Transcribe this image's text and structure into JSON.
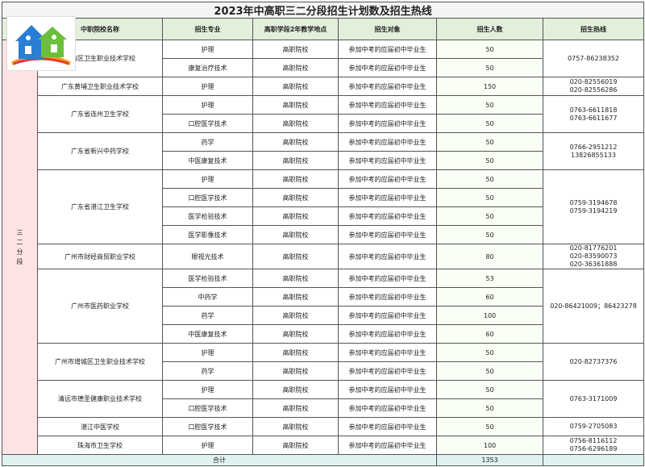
{
  "title": "2023年中高职三二分段招生计划数及招生热线",
  "header": [
    "中职院校名称",
    "招生专业",
    "高职学段2年教学地点",
    "招生对象",
    "招生人数",
    "招生热线"
  ],
  "group": "三二分段",
  "schools": [
    {
      "name": "南海区卫生职业技术学校",
      "hotlines": [
        "0757-86238352"
      ],
      "programs": [
        {
          "major": "护理",
          "place": "高职院校",
          "target": "参加中考的应届初中毕业生",
          "count": 50
        },
        {
          "major": "康复治疗技术",
          "place": "高职院校",
          "target": "参加中考的应届初中毕业生",
          "count": 50
        }
      ]
    },
    {
      "name": "广东黄埔卫生职业技术学校",
      "hotlines": [
        "020-82556019",
        "020-82556286"
      ],
      "programs": [
        {
          "major": "护理",
          "place": "高职院校",
          "target": "参加中考的应届初中毕业生",
          "count": 150
        }
      ]
    },
    {
      "name": "广东省连州卫生学校",
      "hotlines": [
        "0763-6611818",
        "0763-6611677"
      ],
      "programs": [
        {
          "major": "护理",
          "place": "高职院校",
          "target": "参加中考的应届初中毕业生",
          "count": 50
        },
        {
          "major": "口腔医学技术",
          "place": "高职院校",
          "target": "参加中考的应届初中毕业生",
          "count": 50
        }
      ]
    },
    {
      "name": "广东省新兴中药学校",
      "hotlines": [
        "0766-2951212",
        "13826855133"
      ],
      "programs": [
        {
          "major": "药学",
          "place": "高职院校",
          "target": "参加中考的应届初中毕业生",
          "count": 50
        },
        {
          "major": "中医康复技术",
          "place": "高职院校",
          "target": "参加中考的应届初中毕业生",
          "count": 50
        }
      ]
    },
    {
      "name": "广东省湛江卫生学校",
      "hotlines": [
        "0759-3194678",
        "0759-3194219"
      ],
      "programs": [
        {
          "major": "护理",
          "place": "高职院校",
          "target": "参加中考的应届初中毕业生",
          "count": 50
        },
        {
          "major": "口腔医学技术",
          "place": "高职院校",
          "target": "参加中考的应届初中毕业生",
          "count": 50
        },
        {
          "major": "医学检验技术",
          "place": "高职院校",
          "target": "参加中考的应届初中毕业生",
          "count": 50
        },
        {
          "major": "医学影像技术",
          "place": "高职院校",
          "target": "参加中考的应届初中毕业生",
          "count": 50
        }
      ]
    },
    {
      "name": "广州市财经商贸职业学校",
      "hotlines": [
        "020-81776201",
        "020-83590073",
        "020-36361888"
      ],
      "programs": [
        {
          "major": "眼视光技术",
          "place": "高职院校",
          "target": "参加中考的应届初中毕业生",
          "count": 80
        }
      ]
    },
    {
      "name": "广州市医药职业学校",
      "hotlines": [
        "020-86421009；86423278"
      ],
      "programs": [
        {
          "major": "医学检验技术",
          "place": "高职院校",
          "target": "参加中考的应届初中毕业生",
          "count": 53
        },
        {
          "major": "中药学",
          "place": "高职院校",
          "target": "参加中考的应届初中毕业生",
          "count": 60
        },
        {
          "major": "药学",
          "place": "高职院校",
          "target": "参加中考的应届初中毕业生",
          "count": 100
        },
        {
          "major": "中医康复技术",
          "place": "高职院校",
          "target": "参加中考的应届初中毕业生",
          "count": 60
        }
      ]
    },
    {
      "name": "广州市增城区卫生职业技术学校",
      "hotlines": [
        "020-82737376"
      ],
      "programs": [
        {
          "major": "护理",
          "place": "高职院校",
          "target": "参加中考的应届初中毕业生",
          "count": 50
        },
        {
          "major": "药学",
          "place": "高职院校",
          "target": "参加中考的应届初中毕业生",
          "count": 50
        }
      ]
    },
    {
      "name": "清远市德圣健康职业技术学校",
      "hotlines": [
        "0763-3171009"
      ],
      "programs": [
        {
          "major": "护理",
          "place": "高职院校",
          "target": "参加中考的应届初中毕业生",
          "count": 50
        },
        {
          "major": "口腔医学技术",
          "place": "高职院校",
          "target": "参加中考的应届初中毕业生",
          "count": 50
        }
      ]
    },
    {
      "name": "湛江中医学校",
      "hotlines": [
        "0759-2705083"
      ],
      "programs": [
        {
          "major": "口腔医学技术",
          "place": "高职院校",
          "target": "参加中考的应届初中毕业生",
          "count": 50
        }
      ]
    },
    {
      "name": "珠海市卫生学校",
      "hotlines": [
        "0756-8116112",
        "0756-6296189"
      ],
      "programs": [
        {
          "major": "护理",
          "place": "高职院校",
          "target": "参加中考的应届初中毕业生",
          "count": 100
        }
      ]
    }
  ],
  "total": {
    "label": "合计",
    "count": 1353
  }
}
